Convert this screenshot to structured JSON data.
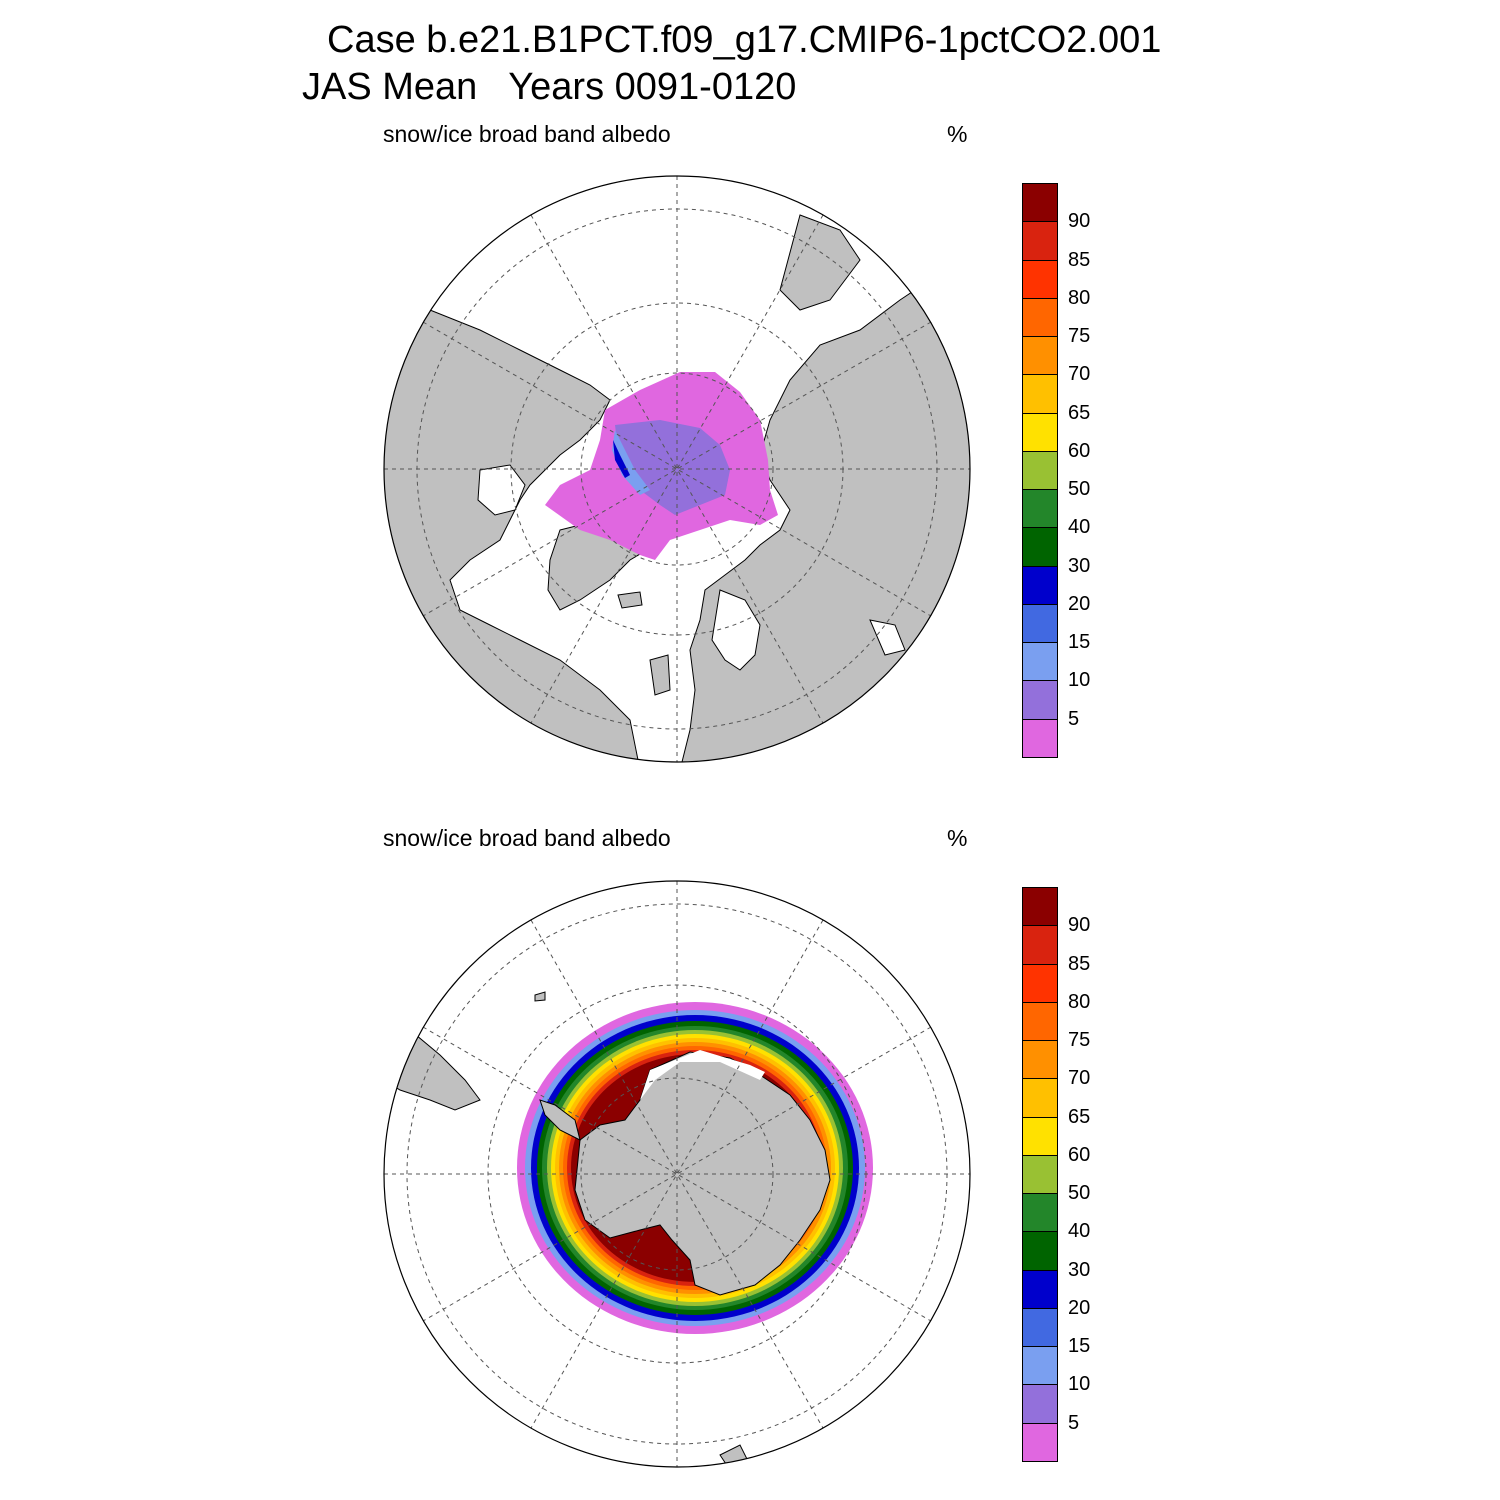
{
  "title": {
    "line1": "Case b.e21.B1PCT.f09_g17.CMIP6-1pctCO2.001",
    "line2": "JAS Mean   Years 0091-0120"
  },
  "panels": [
    {
      "variable": "snow/ice broad band albedo",
      "units": "%",
      "hemisphere": "north"
    },
    {
      "variable": "snow/ice broad band albedo",
      "units": "%",
      "hemisphere": "south"
    }
  ],
  "colorbar": {
    "labels": [
      "90",
      "85",
      "80",
      "75",
      "70",
      "65",
      "60",
      "50",
      "40",
      "30",
      "20",
      "15",
      "10",
      "5"
    ],
    "colors_top_to_bottom": [
      "#8b0000",
      "#d9230f",
      "#ff3300",
      "#ff6600",
      "#ff9000",
      "#ffc000",
      "#ffe100",
      "#99c133",
      "#23862a",
      "#006400",
      "#0000cc",
      "#4169e1",
      "#7a9ff0",
      "#9370db",
      "#e067e0"
    ]
  },
  "map_colors": {
    "land": "#c0c0c0",
    "ocean": "#ffffff",
    "grid": "#555555"
  }
}
